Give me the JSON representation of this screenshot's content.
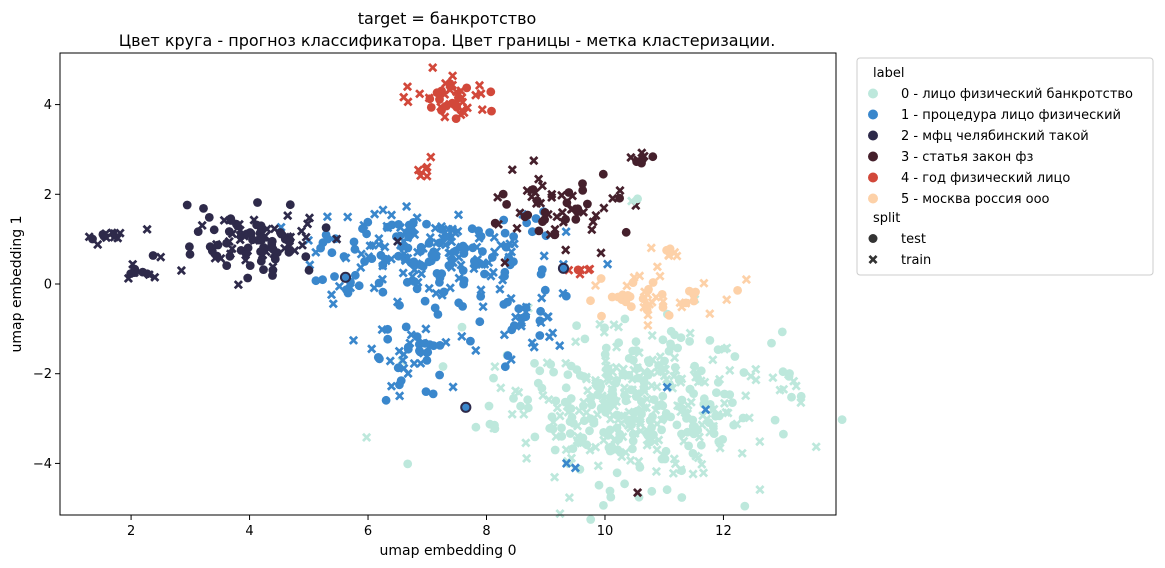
{
  "chart_data": {
    "type": "scatter",
    "title": "target = банкротство",
    "subtitle": "Цвет круга - прогноз классификатора. Цвет границы - метка кластеризации.",
    "xlabel": "umap embedding 0",
    "ylabel": "umap embedding 1",
    "xlim": [
      0.8,
      13.9
    ],
    "ylim": [
      -5.15,
      5.15
    ],
    "xticks": [
      2,
      4,
      6,
      8,
      10,
      12
    ],
    "yticks": [
      -4,
      -2,
      0,
      2,
      4
    ],
    "grid": false,
    "legend_placement": "outside-right",
    "legend": {
      "label_title": "label",
      "labels": [
        {
          "name": "0 - лицо физический банкротство",
          "color": "#bde8dc"
        },
        {
          "name": "1 - процедура лицо физический",
          "color": "#3a87cc"
        },
        {
          "name": "2 - мфц челябинский такой",
          "color": "#2e2a4a"
        },
        {
          "name": "3 - статья закон фз",
          "color": "#45202c"
        },
        {
          "name": "4 - год физический лицо",
          "color": "#d2483a"
        },
        {
          "name": "5 - москва россия ооо",
          "color": "#fdd1a8"
        }
      ],
      "split_title": "split",
      "splits": [
        {
          "name": "test",
          "marker": "circle"
        },
        {
          "name": "train",
          "marker": "cross"
        }
      ]
    },
    "clusters": [
      {
        "label": 0,
        "center": [
          10.4,
          -2.7
        ],
        "spread": [
          1.1,
          0.85
        ],
        "n": 420,
        "split_ratio": 0.5
      },
      {
        "label": 0,
        "center": [
          13.1,
          -2.0
        ],
        "spread": [
          0.15,
          0.15
        ],
        "n": 8,
        "split_ratio": 0.5
      },
      {
        "label": 1,
        "center": [
          7.0,
          0.6
        ],
        "spread": [
          1.1,
          0.55
        ],
        "n": 220,
        "split_ratio": 0.5
      },
      {
        "label": 1,
        "center": [
          6.8,
          -1.5
        ],
        "spread": [
          0.45,
          0.45
        ],
        "n": 45,
        "split_ratio": 0.5
      },
      {
        "label": 1,
        "center": [
          8.7,
          -0.8
        ],
        "spread": [
          0.25,
          0.55
        ],
        "n": 30,
        "split_ratio": 0.5
      },
      {
        "label": 2,
        "center": [
          4.1,
          0.9
        ],
        "spread": [
          0.55,
          0.35
        ],
        "n": 100,
        "split_ratio": 0.5
      },
      {
        "label": 2,
        "center": [
          1.6,
          1.05
        ],
        "spread": [
          0.18,
          0.08
        ],
        "n": 12,
        "split_ratio": 0.3
      },
      {
        "label": 2,
        "center": [
          2.1,
          0.25
        ],
        "spread": [
          0.12,
          0.1
        ],
        "n": 10,
        "split_ratio": 0.5
      },
      {
        "label": 3,
        "center": [
          9.2,
          1.65
        ],
        "spread": [
          0.7,
          0.4
        ],
        "n": 60,
        "split_ratio": 0.4
      },
      {
        "label": 3,
        "center": [
          10.6,
          2.85
        ],
        "spread": [
          0.1,
          0.1
        ],
        "n": 8,
        "split_ratio": 0.3
      },
      {
        "label": 4,
        "center": [
          7.5,
          4.15
        ],
        "spread": [
          0.35,
          0.28
        ],
        "n": 45,
        "split_ratio": 0.4
      },
      {
        "label": 4,
        "center": [
          7.0,
          2.7
        ],
        "spread": [
          0.06,
          0.12
        ],
        "n": 6,
        "split_ratio": 0.2
      },
      {
        "label": 4,
        "center": [
          9.6,
          0.35
        ],
        "spread": [
          0.08,
          0.07
        ],
        "n": 6,
        "split_ratio": 0.2
      },
      {
        "label": 5,
        "center": [
          10.6,
          -0.3
        ],
        "spread": [
          0.7,
          0.35
        ],
        "n": 50,
        "split_ratio": 0.5
      },
      {
        "label": 5,
        "center": [
          11.1,
          0.75
        ],
        "spread": [
          0.1,
          0.06
        ],
        "n": 6,
        "split_ratio": 0.5
      }
    ],
    "highlighted_points": [
      {
        "x": 5.62,
        "y": 0.15,
        "label": 1,
        "split": "test"
      },
      {
        "x": 7.65,
        "y": -2.75,
        "label": 1,
        "split": "test"
      },
      {
        "x": 9.3,
        "y": 0.35,
        "label": 1,
        "split": "test"
      }
    ],
    "scattered_points": [
      {
        "x": 11.05,
        "y": -2.3,
        "label": 1,
        "split": "train"
      },
      {
        "x": 11.7,
        "y": -2.8,
        "label": 1,
        "split": "train"
      },
      {
        "x": 9.35,
        "y": -4.0,
        "label": 1,
        "split": "train"
      },
      {
        "x": 9.5,
        "y": -4.1,
        "label": 1,
        "split": "train"
      },
      {
        "x": 10.55,
        "y": -4.65,
        "label": 3,
        "split": "train"
      },
      {
        "x": 10.55,
        "y": 1.9,
        "label": 0,
        "split": "test"
      },
      {
        "x": 10.45,
        "y": 1.85,
        "label": 0,
        "split": "train"
      },
      {
        "x": 5.2,
        "y": 0.8,
        "label": 1,
        "split": "test"
      },
      {
        "x": 6.5,
        "y": 0.95,
        "label": 2,
        "split": "train"
      },
      {
        "x": 2.5,
        "y": 0.6,
        "label": 2,
        "split": "train"
      },
      {
        "x": 2.85,
        "y": 0.3,
        "label": 2,
        "split": "train"
      },
      {
        "x": 2.4,
        "y": 0.15,
        "label": 2,
        "split": "train"
      },
      {
        "x": 7.1,
        "y": -2.45,
        "label": 1,
        "split": "test"
      }
    ]
  }
}
